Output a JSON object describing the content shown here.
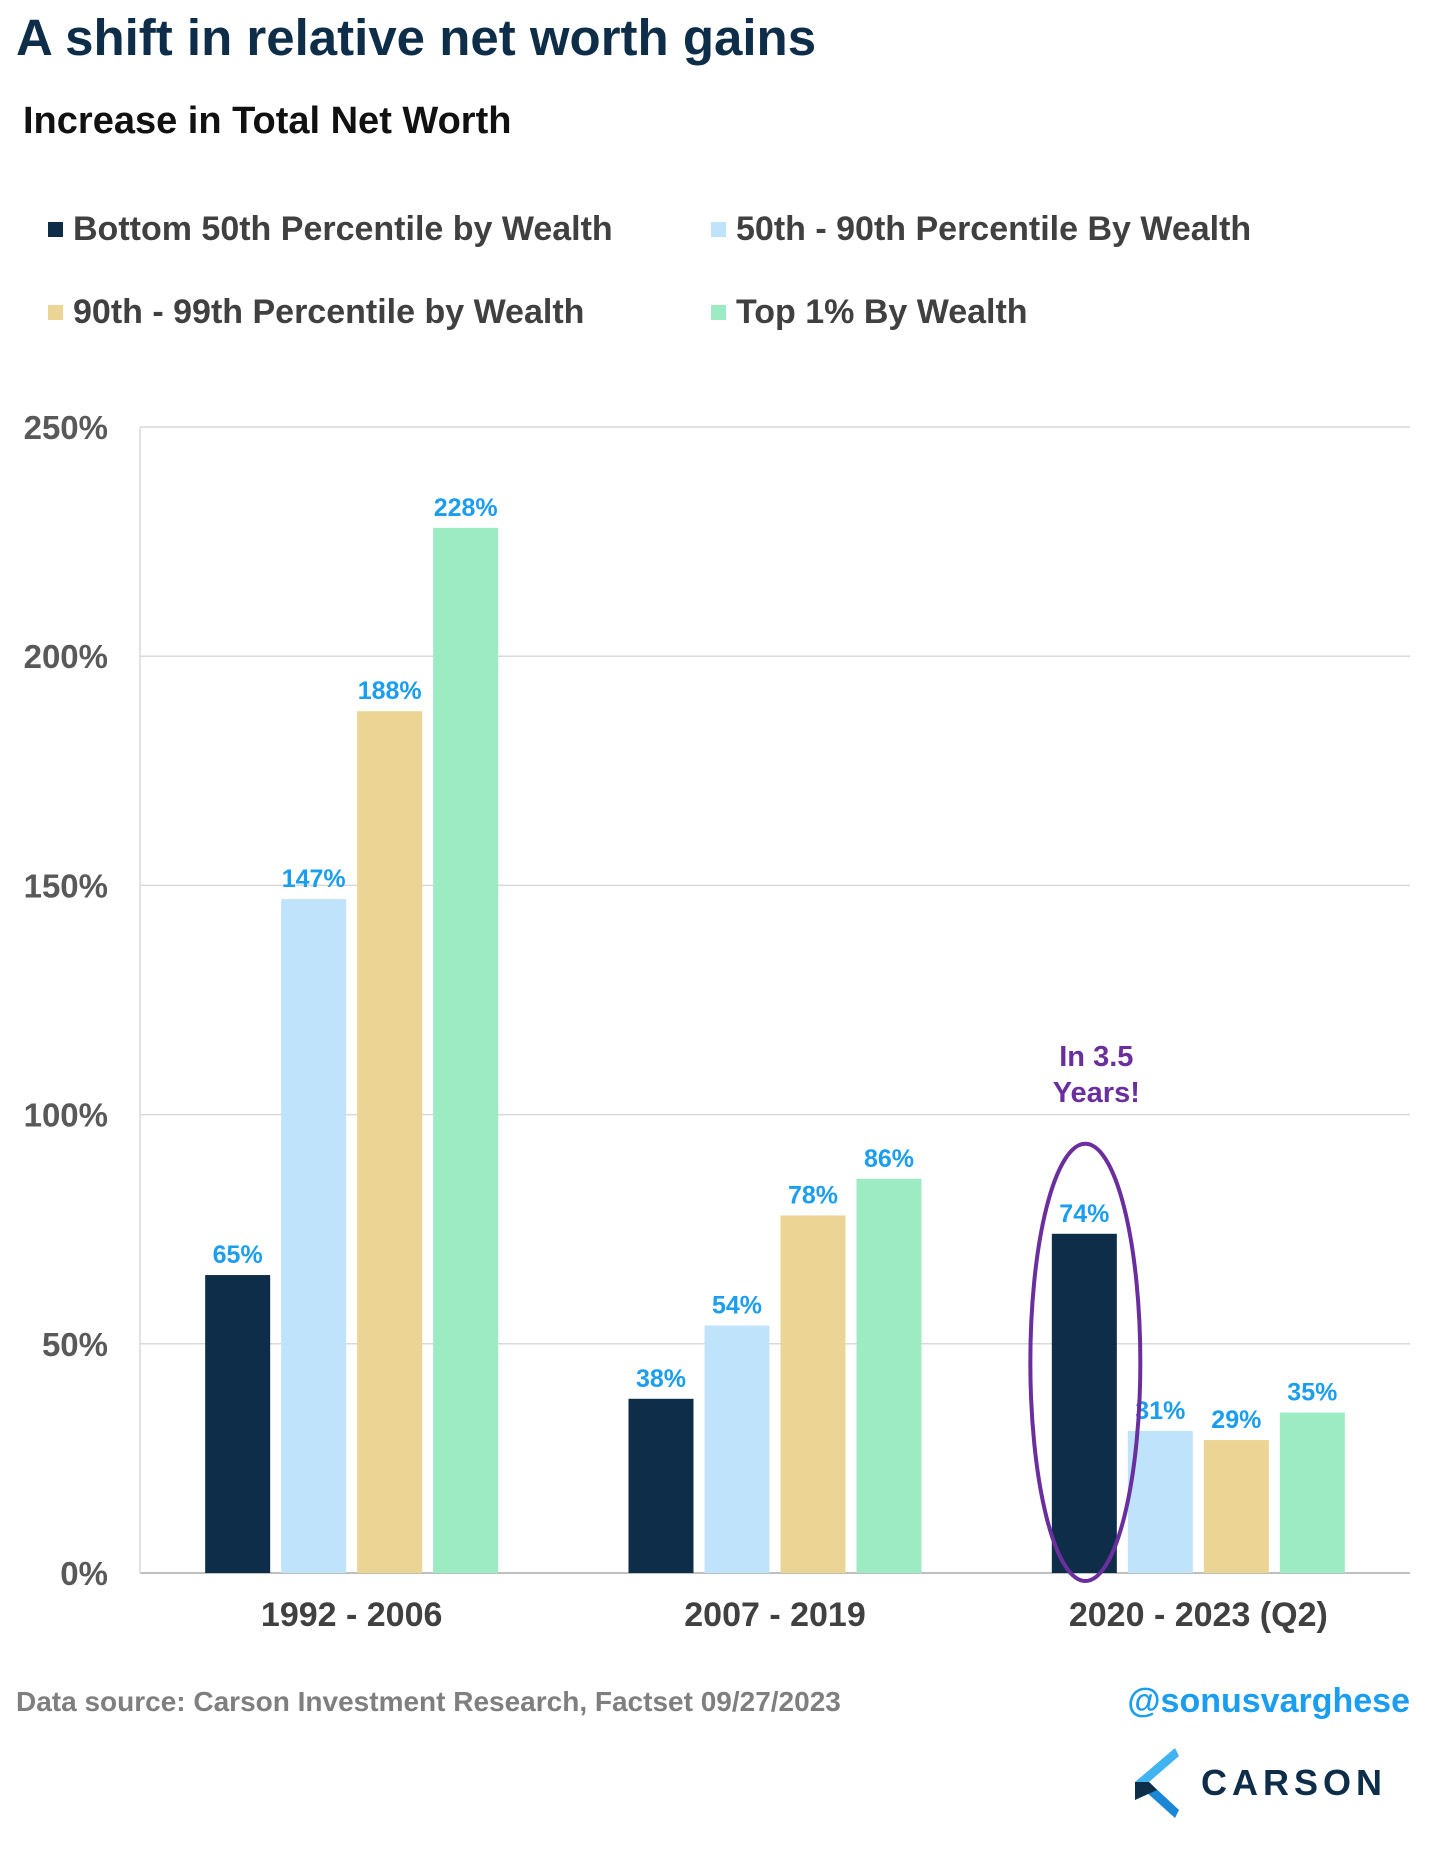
{
  "header": {
    "title": "A shift in relative net worth gains",
    "subtitle": "Increase in Total Net Worth"
  },
  "chart_data": {
    "type": "bar",
    "categories": [
      "1992 - 2006",
      "2007 - 2019",
      "2020 - 2023 (Q2)"
    ],
    "series": [
      {
        "name": "Bottom 50th Percentile by Wealth",
        "color": "#0e2d48",
        "values": [
          65,
          38,
          74
        ],
        "labels": [
          "65%",
          "38%",
          "74%"
        ]
      },
      {
        "name": "50th - 90th Percentile By Wealth",
        "color": "#bfe3fb",
        "values": [
          147,
          54,
          31
        ],
        "labels": [
          "147%",
          "54%",
          "31%"
        ]
      },
      {
        "name": "90th - 99th Percentile by Wealth",
        "color": "#ebd494",
        "values": [
          188,
          78,
          29
        ],
        "labels": [
          "188%",
          "78%",
          "29%"
        ]
      },
      {
        "name": "Top 1% By Wealth",
        "color": "#9debc2",
        "values": [
          228,
          86,
          35
        ],
        "labels": [
          "228%",
          "86%",
          "35%"
        ]
      }
    ],
    "ylim": [
      0,
      250
    ],
    "yticks": [
      0,
      50,
      100,
      150,
      200,
      250
    ],
    "ytick_labels": [
      "0%",
      "50%",
      "100%",
      "150%",
      "200%",
      "250%"
    ],
    "grid": true,
    "legend_position": "top",
    "data_label_color": "#1b9df0",
    "annotation": {
      "text_line1": "In 3.5",
      "text_line2": "Years!",
      "color": "#6b2e9e",
      "target_category": "2020 - 2023 (Q2)",
      "target_series": "Bottom 50th Percentile by Wealth"
    }
  },
  "footer": {
    "source": "Data source: Carson Investment Research, Factset   09/27/2023",
    "handle": "@sonusvarghese",
    "logo_text": "CARSON"
  }
}
